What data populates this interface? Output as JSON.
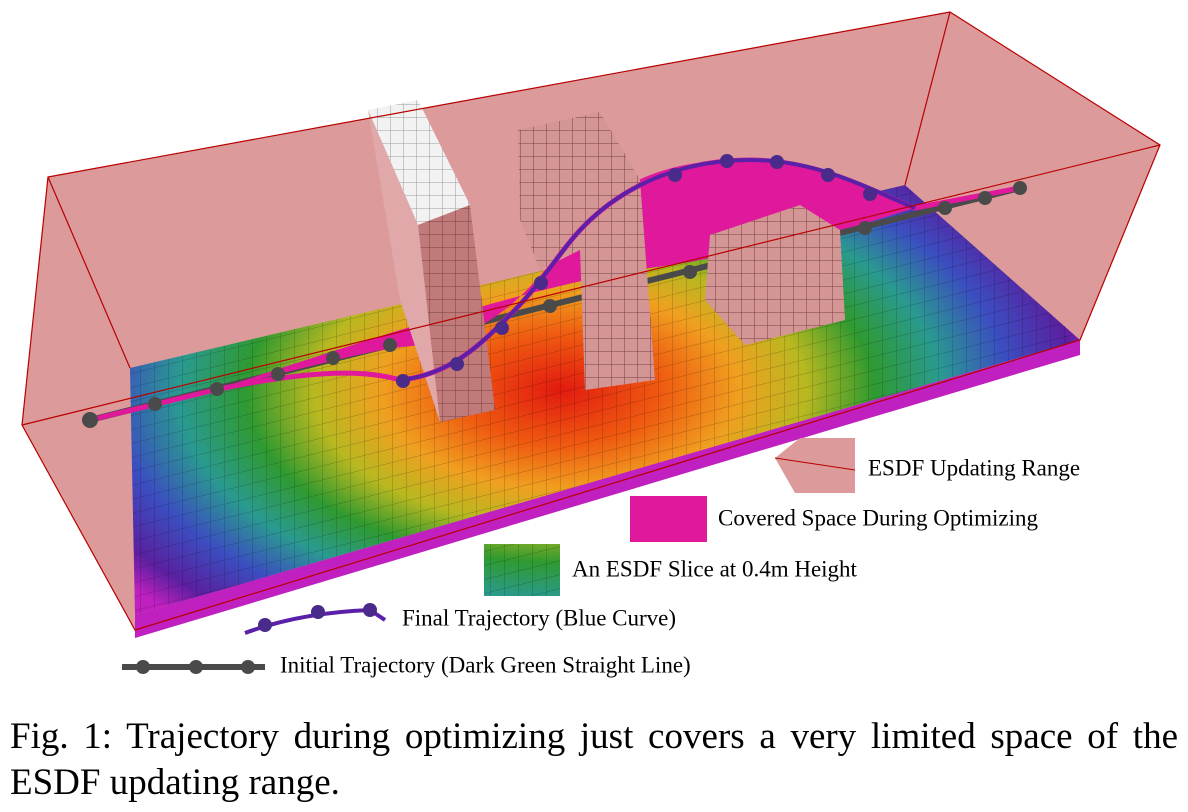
{
  "figure": {
    "legend": [
      "ESDF Updating Range",
      "Covered Space During Optimizing",
      "An ESDF Slice at 0.4m Height",
      "Final Trajectory (Blue Curve)",
      "Initial Trajectory (Dark Green Straight Line)"
    ],
    "caption": "Fig. 1: Trajectory during optimizing just covers a very limited space of the ESDF updating range."
  }
}
